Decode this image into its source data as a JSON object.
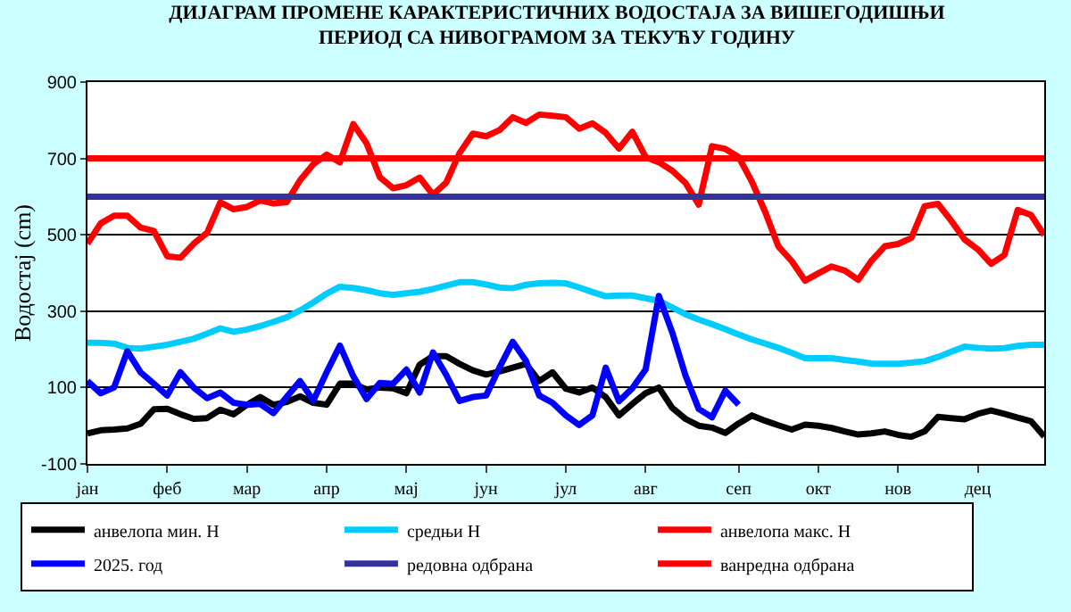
{
  "chart_data": {
    "type": "line",
    "title": "ДИЈАГРАМ ПРОМЕНЕ КАРАКТЕРИСТИЧНИХ ВОДОСТАЈА ЗА ВИШЕГОДИШЊИ ПЕРИОД СА НИВОГРАМОМ ЗА ТЕКУЋУ ГОДИНУ",
    "ylabel": "Водостај (cm)",
    "categories": [
      "јан",
      null,
      null,
      null,
      null,
      null,
      "феб",
      null,
      null,
      null,
      null,
      null,
      "мар",
      null,
      null,
      null,
      null,
      null,
      "апр",
      null,
      null,
      null,
      null,
      null,
      "мај",
      null,
      null,
      null,
      null,
      null,
      "јун",
      null,
      null,
      null,
      null,
      null,
      "јул",
      null,
      null,
      null,
      null,
      null,
      "авг",
      null,
      null,
      null,
      null,
      null,
      null,
      "сеп",
      null,
      null,
      null,
      null,
      null,
      "окт",
      null,
      null,
      null,
      null,
      null,
      "нов",
      null,
      null,
      null,
      null,
      null,
      "дец",
      null,
      null,
      null,
      null,
      null
    ],
    "ylim": [
      -100,
      900
    ],
    "yticks": [
      -100,
      100,
      300,
      500,
      700,
      900
    ],
    "grid": "y",
    "legend": "bottom",
    "marker": "none",
    "line_style": "solid",
    "series": [
      {
        "name": "анвелопа мин. Н",
        "color": "#000000",
        "values": [
          -20,
          -12,
          -10,
          -7,
          5,
          43,
          44,
          30,
          18,
          20,
          42,
          30,
          55,
          75,
          55,
          62,
          77,
          60,
          55,
          110,
          110,
          95,
          100,
          98,
          85,
          160,
          182,
          182,
          162,
          145,
          134,
          142,
          152,
          162,
          117,
          140,
          97,
          87,
          100,
          75,
          27,
          57,
          85,
          100,
          47,
          18,
          0,
          -5,
          -19,
          6,
          27,
          13,
          1,
          -10,
          3,
          0,
          -6,
          -15,
          -23,
          -20,
          -15,
          -24,
          -29,
          -15,
          23,
          20,
          17,
          31,
          40,
          31,
          21,
          12,
          -28
        ]
      },
      {
        "name": "средњи Н",
        "color": "#00ccff",
        "values": [
          217,
          217,
          215,
          204,
          202,
          207,
          212,
          220,
          228,
          241,
          255,
          246,
          252,
          261,
          272,
          284,
          302,
          323,
          346,
          364,
          361,
          355,
          347,
          343,
          347,
          351,
          358,
          367,
          376,
          376,
          370,
          362,
          360,
          369,
          373,
          374,
          373,
          362,
          350,
          339,
          341,
          341,
          334,
          327,
          310,
          292,
          278,
          266,
          253,
          239,
          226,
          215,
          204,
          191,
          177,
          177,
          177,
          172,
          168,
          163,
          162,
          162,
          165,
          169,
          180,
          194,
          207,
          204,
          202,
          203,
          209,
          212,
          212
        ]
      },
      {
        "name": "анвелопа макс. Н",
        "color": "#ff0000",
        "values": [
          477,
          530,
          550,
          550,
          519,
          510,
          444,
          440,
          477,
          505,
          585,
          567,
          573,
          590,
          582,
          586,
          643,
          685,
          710,
          690,
          790,
          740,
          651,
          622,
          630,
          650,
          605,
          637,
          714,
          765,
          758,
          774,
          808,
          793,
          815,
          812,
          808,
          778,
          792,
          767,
          726,
          770,
          704,
          690,
          668,
          636,
          579,
          732,
          725,
          704,
          639,
          560,
          469,
          431,
          380,
          399,
          417,
          406,
          382,
          432,
          470,
          476,
          492,
          575,
          581,
          537,
          488,
          462,
          424,
          447,
          565,
          552,
          499
        ]
      },
      {
        "name": "2025. год",
        "color": "#0000ff",
        "values": [
          117,
          85,
          100,
          195,
          140,
          110,
          79,
          140,
          100,
          72,
          87,
          60,
          55,
          57,
          33,
          76,
          117,
          66,
          140,
          210,
          130,
          70,
          112,
          110,
          147,
          87,
          192,
          133,
          65,
          75,
          79,
          152,
          220,
          170,
          79,
          60,
          27,
          2,
          27,
          152,
          64,
          98,
          147,
          340,
          245,
          132,
          44,
          22,
          92,
          55,
          null,
          null,
          null,
          null,
          null,
          null,
          null,
          null,
          null,
          null,
          null,
          null,
          null,
          null,
          null,
          null,
          null,
          null,
          null,
          null,
          null,
          null,
          null
        ]
      },
      {
        "name": "редовна одбрана",
        "color": "#333399",
        "values": [
          600,
          600,
          600,
          600,
          600,
          600,
          600,
          600,
          600,
          600,
          600,
          600,
          600,
          600,
          600,
          600,
          600,
          600,
          600,
          600,
          600,
          600,
          600,
          600,
          600,
          600,
          600,
          600,
          600,
          600,
          600,
          600,
          600,
          600,
          600,
          600,
          600,
          600,
          600,
          600,
          600,
          600,
          600,
          600,
          600,
          600,
          600,
          600,
          600,
          600,
          600,
          600,
          600,
          600,
          600,
          600,
          600,
          600,
          600,
          600,
          600,
          600,
          600,
          600,
          600,
          600,
          600,
          600,
          600,
          600,
          600,
          600,
          600
        ]
      },
      {
        "name": "ванредна одбрана",
        "color": "#ff0000",
        "values": [
          700,
          700,
          700,
          700,
          700,
          700,
          700,
          700,
          700,
          700,
          700,
          700,
          700,
          700,
          700,
          700,
          700,
          700,
          700,
          700,
          700,
          700,
          700,
          700,
          700,
          700,
          700,
          700,
          700,
          700,
          700,
          700,
          700,
          700,
          700,
          700,
          700,
          700,
          700,
          700,
          700,
          700,
          700,
          700,
          700,
          700,
          700,
          700,
          700,
          700,
          700,
          700,
          700,
          700,
          700,
          700,
          700,
          700,
          700,
          700,
          700,
          700,
          700,
          700,
          700,
          700,
          700,
          700,
          700,
          700,
          700,
          700,
          700
        ]
      }
    ]
  }
}
